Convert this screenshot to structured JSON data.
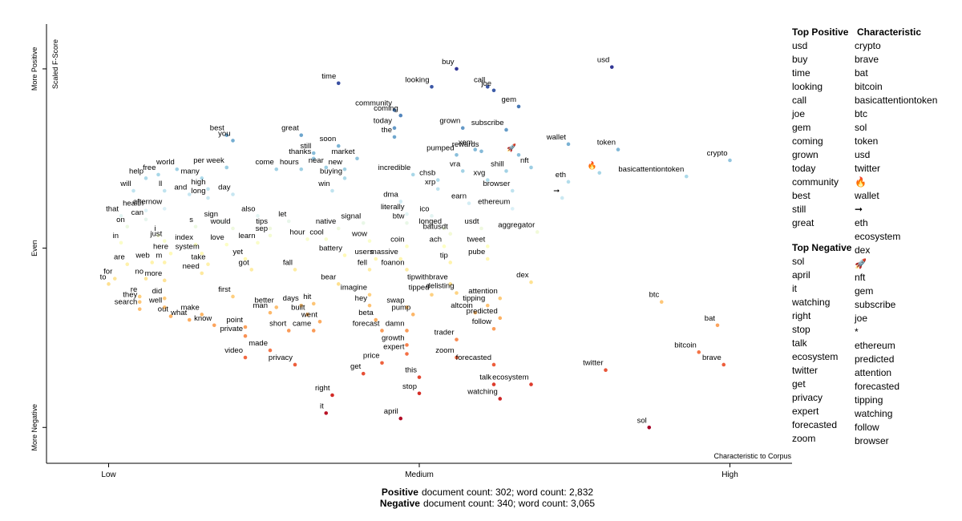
{
  "chart_data": {
    "type": "scatter",
    "y_label": "Scaled F-Score",
    "x_label": "Characteristic to Corpus",
    "xlim": [
      -0.1,
      1.1
    ],
    "ylim": [
      -1.2,
      1.25
    ],
    "xticks": [
      {
        "value": 0,
        "label": "Low"
      },
      {
        "value": 0.5,
        "label": "Medium"
      },
      {
        "value": 1,
        "label": "High"
      }
    ],
    "yticks": [
      {
        "value": 1,
        "label": "More Positive"
      },
      {
        "value": 0,
        "label": "Even"
      },
      {
        "value": -1,
        "label": "More Negative"
      }
    ],
    "colors": [
      "#a50026",
      "#d73027",
      "#f46d43",
      "#fdae61",
      "#fee090",
      "#ffffbf",
      "#e0f3f8",
      "#abd9e9",
      "#74add1",
      "#4575b4",
      "#313695"
    ],
    "points": [
      {
        "label": "usd",
        "x": 0.81,
        "y": 1.01
      },
      {
        "label": "buy",
        "x": 0.56,
        "y": 1.0
      },
      {
        "label": "time",
        "x": 0.37,
        "y": 0.92
      },
      {
        "label": "looking",
        "x": 0.52,
        "y": 0.9
      },
      {
        "label": "call",
        "x": 0.61,
        "y": 0.9
      },
      {
        "label": "joe",
        "x": 0.62,
        "y": 0.88
      },
      {
        "label": "gem",
        "x": 0.66,
        "y": 0.79
      },
      {
        "label": "community",
        "x": 0.46,
        "y": 0.77
      },
      {
        "label": "coming",
        "x": 0.47,
        "y": 0.74
      },
      {
        "label": "today",
        "x": 0.46,
        "y": 0.67
      },
      {
        "label": "the",
        "x": 0.46,
        "y": 0.62
      },
      {
        "label": "grown",
        "x": 0.57,
        "y": 0.67
      },
      {
        "label": "subscribe",
        "x": 0.64,
        "y": 0.66
      },
      {
        "label": "best",
        "x": 0.19,
        "y": 0.63
      },
      {
        "label": "you",
        "x": 0.2,
        "y": 0.6
      },
      {
        "label": "great",
        "x": 0.31,
        "y": 0.63
      },
      {
        "label": "soon",
        "x": 0.37,
        "y": 0.57
      },
      {
        "label": "still",
        "x": 0.33,
        "y": 0.53
      },
      {
        "label": "thanks",
        "x": 0.33,
        "y": 0.5
      },
      {
        "label": "market",
        "x": 0.4,
        "y": 0.5
      },
      {
        "label": "wallet",
        "x": 0.74,
        "y": 0.58
      },
      {
        "label": "token",
        "x": 0.82,
        "y": 0.55
      },
      {
        "label": "crypto",
        "x": 1.0,
        "y": 0.49
      },
      {
        "label": "xem",
        "x": 0.59,
        "y": 0.55
      },
      {
        "label": "pumped",
        "x": 0.56,
        "y": 0.52
      },
      {
        "label": "rewards",
        "x": 0.6,
        "y": 0.54
      },
      {
        "label": "🚀",
        "x": 0.66,
        "y": 0.52
      },
      {
        "label": "nft",
        "x": 0.68,
        "y": 0.45
      },
      {
        "label": "per week",
        "x": 0.19,
        "y": 0.45
      },
      {
        "label": "come",
        "x": 0.27,
        "y": 0.44
      },
      {
        "label": "hours",
        "x": 0.31,
        "y": 0.44
      },
      {
        "label": "near",
        "x": 0.35,
        "y": 0.45
      },
      {
        "label": "new",
        "x": 0.38,
        "y": 0.44
      },
      {
        "label": "world",
        "x": 0.11,
        "y": 0.44
      },
      {
        "label": "free",
        "x": 0.08,
        "y": 0.41
      },
      {
        "label": "many",
        "x": 0.15,
        "y": 0.39
      },
      {
        "label": "help",
        "x": 0.06,
        "y": 0.39
      },
      {
        "label": "will",
        "x": 0.04,
        "y": 0.32
      },
      {
        "label": "ll",
        "x": 0.09,
        "y": 0.32
      },
      {
        "label": "and",
        "x": 0.13,
        "y": 0.3
      },
      {
        "label": "high",
        "x": 0.16,
        "y": 0.33
      },
      {
        "label": "long",
        "x": 0.16,
        "y": 0.28
      },
      {
        "label": "day",
        "x": 0.2,
        "y": 0.3
      },
      {
        "label": "buying",
        "x": 0.38,
        "y": 0.39
      },
      {
        "label": "win",
        "x": 0.36,
        "y": 0.32
      },
      {
        "label": "incredible",
        "x": 0.49,
        "y": 0.41
      },
      {
        "label": "chsb",
        "x": 0.53,
        "y": 0.38
      },
      {
        "label": "vra",
        "x": 0.57,
        "y": 0.43
      },
      {
        "label": "shill",
        "x": 0.64,
        "y": 0.43
      },
      {
        "label": "xvg",
        "x": 0.61,
        "y": 0.38
      },
      {
        "label": "xrp",
        "x": 0.53,
        "y": 0.33
      },
      {
        "label": "browser",
        "x": 0.65,
        "y": 0.32
      },
      {
        "label": "eth",
        "x": 0.74,
        "y": 0.37
      },
      {
        "label": "🔥",
        "x": 0.79,
        "y": 0.42
      },
      {
        "label": "basicattentiontoken",
        "x": 0.93,
        "y": 0.4
      },
      {
        "label": "ethereum",
        "x": 0.65,
        "y": 0.22
      },
      {
        "label": "➞",
        "x": 0.73,
        "y": 0.28
      },
      {
        "label": "dma",
        "x": 0.47,
        "y": 0.26
      },
      {
        "label": "earn",
        "x": 0.58,
        "y": 0.25
      },
      {
        "label": "that",
        "x": 0.02,
        "y": 0.18
      },
      {
        "label": "health",
        "x": 0.06,
        "y": 0.21
      },
      {
        "label": "can",
        "x": 0.06,
        "y": 0.16
      },
      {
        "label": "afternow",
        "x": 0.09,
        "y": 0.22
      },
      {
        "label": "also",
        "x": 0.24,
        "y": 0.18
      },
      {
        "label": "sign",
        "x": 0.18,
        "y": 0.15
      },
      {
        "label": "would",
        "x": 0.2,
        "y": 0.11
      },
      {
        "label": "s",
        "x": 0.14,
        "y": 0.12
      },
      {
        "label": "literally",
        "x": 0.48,
        "y": 0.19
      },
      {
        "label": "ico",
        "x": 0.52,
        "y": 0.18
      },
      {
        "label": "tips",
        "x": 0.26,
        "y": 0.11
      },
      {
        "label": "let",
        "x": 0.29,
        "y": 0.15
      },
      {
        "label": "native",
        "x": 0.37,
        "y": 0.11
      },
      {
        "label": "signal",
        "x": 0.41,
        "y": 0.14
      },
      {
        "label": "btw",
        "x": 0.48,
        "y": 0.14
      },
      {
        "label": "longed",
        "x": 0.54,
        "y": 0.11
      },
      {
        "label": "usdt",
        "x": 0.6,
        "y": 0.11
      },
      {
        "label": "aggregator",
        "x": 0.69,
        "y": 0.09
      },
      {
        "label": "on",
        "x": 0.03,
        "y": 0.12
      },
      {
        "label": "i",
        "x": 0.08,
        "y": 0.07
      },
      {
        "label": "sep",
        "x": 0.26,
        "y": 0.07
      },
      {
        "label": "hour",
        "x": 0.32,
        "y": 0.05
      },
      {
        "label": "cool",
        "x": 0.35,
        "y": 0.05
      },
      {
        "label": "batusdt",
        "x": 0.55,
        "y": 0.08
      },
      {
        "label": "just",
        "x": 0.09,
        "y": 0.04
      },
      {
        "label": "index",
        "x": 0.14,
        "y": 0.02
      },
      {
        "label": "love",
        "x": 0.19,
        "y": 0.02
      },
      {
        "label": "learn",
        "x": 0.24,
        "y": 0.03
      },
      {
        "label": "wow",
        "x": 0.42,
        "y": 0.04
      },
      {
        "label": "coin",
        "x": 0.48,
        "y": 0.01
      },
      {
        "label": "ach",
        "x": 0.54,
        "y": 0.01
      },
      {
        "label": "tweet",
        "x": 0.61,
        "y": 0.01
      },
      {
        "label": "in",
        "x": 0.02,
        "y": 0.03
      },
      {
        "label": "here",
        "x": 0.1,
        "y": -0.03
      },
      {
        "label": "system",
        "x": 0.15,
        "y": -0.03
      },
      {
        "label": "battery",
        "x": 0.38,
        "y": -0.04
      },
      {
        "label": "pube",
        "x": 0.61,
        "y": -0.06
      },
      {
        "label": "yet",
        "x": 0.22,
        "y": -0.06
      },
      {
        "label": "users",
        "x": 0.43,
        "y": -0.06
      },
      {
        "label": "massive",
        "x": 0.47,
        "y": -0.06
      },
      {
        "label": "are",
        "x": 0.03,
        "y": -0.09
      },
      {
        "label": "web",
        "x": 0.07,
        "y": -0.08
      },
      {
        "label": "m",
        "x": 0.09,
        "y": -0.08
      },
      {
        "label": "take",
        "x": 0.16,
        "y": -0.09
      },
      {
        "label": "got",
        "x": 0.23,
        "y": -0.12
      },
      {
        "label": "tip",
        "x": 0.55,
        "y": -0.08
      },
      {
        "label": "need",
        "x": 0.15,
        "y": -0.14
      },
      {
        "label": "fall",
        "x": 0.3,
        "y": -0.12
      },
      {
        "label": "fell",
        "x": 0.42,
        "y": -0.12
      },
      {
        "label": "foanon",
        "x": 0.48,
        "y": -0.12
      },
      {
        "label": "to",
        "x": 0.0,
        "y": -0.2
      },
      {
        "label": "for",
        "x": 0.01,
        "y": -0.17
      },
      {
        "label": "no",
        "x": 0.06,
        "y": -0.17
      },
      {
        "label": "more",
        "x": 0.09,
        "y": -0.18
      },
      {
        "label": "bear",
        "x": 0.37,
        "y": -0.2
      },
      {
        "label": "tipwithbrave",
        "x": 0.55,
        "y": -0.2
      },
      {
        "label": "dex",
        "x": 0.68,
        "y": -0.19
      },
      {
        "label": "re",
        "x": 0.05,
        "y": -0.27
      },
      {
        "label": "did",
        "x": 0.09,
        "y": -0.28
      },
      {
        "label": "first",
        "x": 0.2,
        "y": -0.27
      },
      {
        "label": "imagine",
        "x": 0.42,
        "y": -0.26
      },
      {
        "label": "tipped",
        "x": 0.52,
        "y": -0.26
      },
      {
        "label": "delisting",
        "x": 0.56,
        "y": -0.25
      },
      {
        "label": "attention",
        "x": 0.63,
        "y": -0.28
      },
      {
        "label": "they",
        "x": 0.05,
        "y": -0.3
      },
      {
        "label": "well",
        "x": 0.09,
        "y": -0.33
      },
      {
        "label": "search",
        "x": 0.05,
        "y": -0.34
      },
      {
        "label": "days",
        "x": 0.31,
        "y": -0.32
      },
      {
        "label": "hit",
        "x": 0.33,
        "y": -0.31
      },
      {
        "label": "better",
        "x": 0.27,
        "y": -0.33
      },
      {
        "label": "man",
        "x": 0.26,
        "y": -0.36
      },
      {
        "label": "make",
        "x": 0.15,
        "y": -0.37
      },
      {
        "label": "out",
        "x": 0.1,
        "y": -0.38
      },
      {
        "label": "built",
        "x": 0.32,
        "y": -0.37
      },
      {
        "label": "swap",
        "x": 0.48,
        "y": -0.33
      },
      {
        "label": "hey",
        "x": 0.42,
        "y": -0.32
      },
      {
        "label": "tipping",
        "x": 0.61,
        "y": -0.32
      },
      {
        "label": "altcoin",
        "x": 0.59,
        "y": -0.36
      },
      {
        "label": "pump",
        "x": 0.49,
        "y": -0.37
      },
      {
        "label": "predicted",
        "x": 0.63,
        "y": -0.39
      },
      {
        "label": "btc",
        "x": 0.89,
        "y": -0.3
      },
      {
        "label": "what",
        "x": 0.13,
        "y": -0.4
      },
      {
        "label": "know",
        "x": 0.17,
        "y": -0.43
      },
      {
        "label": "point",
        "x": 0.22,
        "y": -0.44
      },
      {
        "label": "went",
        "x": 0.34,
        "y": -0.41
      },
      {
        "label": "beta",
        "x": 0.43,
        "y": -0.4
      },
      {
        "label": "short",
        "x": 0.29,
        "y": -0.46
      },
      {
        "label": "came",
        "x": 0.33,
        "y": -0.46
      },
      {
        "label": "forecast",
        "x": 0.44,
        "y": -0.46
      },
      {
        "label": "follow",
        "x": 0.62,
        "y": -0.45
      },
      {
        "label": "damn",
        "x": 0.48,
        "y": -0.46
      },
      {
        "label": "bat",
        "x": 0.98,
        "y": -0.43
      },
      {
        "label": "private",
        "x": 0.22,
        "y": -0.49
      },
      {
        "label": "trader",
        "x": 0.56,
        "y": -0.51
      },
      {
        "label": "growth",
        "x": 0.48,
        "y": -0.54
      },
      {
        "label": "bitcoin",
        "x": 0.95,
        "y": -0.58
      },
      {
        "label": "made",
        "x": 0.26,
        "y": -0.57
      },
      {
        "label": "expert",
        "x": 0.48,
        "y": -0.59
      },
      {
        "label": "video",
        "x": 0.22,
        "y": -0.61
      },
      {
        "label": "zoom",
        "x": 0.56,
        "y": -0.61
      },
      {
        "label": "privacy",
        "x": 0.3,
        "y": -0.65
      },
      {
        "label": "brave",
        "x": 0.99,
        "y": -0.65
      },
      {
        "label": "forecasted",
        "x": 0.62,
        "y": -0.65
      },
      {
        "label": "twitter",
        "x": 0.8,
        "y": -0.68
      },
      {
        "label": "price",
        "x": 0.44,
        "y": -0.64
      },
      {
        "label": "get",
        "x": 0.41,
        "y": -0.7
      },
      {
        "label": "this",
        "x": 0.5,
        "y": -0.72
      },
      {
        "label": "talk",
        "x": 0.62,
        "y": -0.76
      },
      {
        "label": "ecosystem",
        "x": 0.68,
        "y": -0.76
      },
      {
        "label": "right",
        "x": 0.36,
        "y": -0.82
      },
      {
        "label": "stop",
        "x": 0.5,
        "y": -0.81
      },
      {
        "label": "watching",
        "x": 0.63,
        "y": -0.84
      },
      {
        "label": "it",
        "x": 0.35,
        "y": -0.92
      },
      {
        "label": "april",
        "x": 0.47,
        "y": -0.95
      },
      {
        "label": "sol",
        "x": 0.87,
        "y": -1.0
      }
    ]
  },
  "top_positive": {
    "title": "Top Positive",
    "terms": [
      "usd",
      "buy",
      "time",
      "looking",
      "call",
      "joe",
      "gem",
      "coming",
      "grown",
      "today",
      "community",
      "best",
      "still",
      "great"
    ]
  },
  "top_negative": {
    "title": "Top Negative",
    "terms": [
      "sol",
      "april",
      "it",
      "watching",
      "right",
      "stop",
      "talk",
      "ecosystem",
      "twitter",
      "get",
      "privacy",
      "expert",
      "forecasted",
      "zoom"
    ]
  },
  "characteristic": {
    "title": "Characteristic",
    "terms": [
      "crypto",
      "brave",
      "bat",
      "bitcoin",
      "basicattentiontoken",
      "btc",
      "sol",
      "token",
      "usd",
      "twitter",
      "🔥",
      "wallet",
      "➞",
      "eth",
      "ecosystem",
      "dex",
      "🚀",
      "nft",
      "gem",
      "subscribe",
      "joe",
      "*",
      "ethereum",
      "predicted",
      "attention",
      "forecasted",
      "tipping",
      "watching",
      "follow",
      "browser"
    ]
  },
  "footer": [
    {
      "label": "Positive",
      "text": "document count: 302; word count: 2,832"
    },
    {
      "label": "Negative",
      "text": "document count: 340; word count: 3,065"
    }
  ]
}
